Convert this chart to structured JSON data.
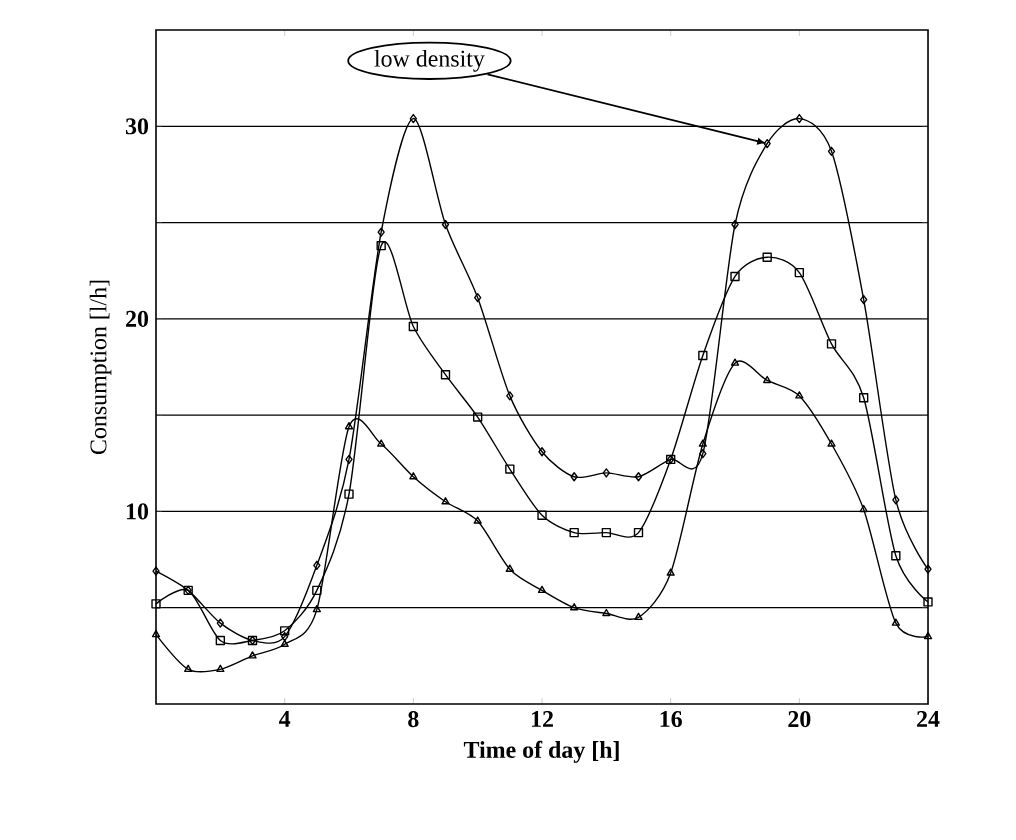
{
  "chart_data": {
    "type": "line",
    "xlabel": "Time of day [h]",
    "ylabel": "Consumption [l/h]",
    "x": [
      0,
      1,
      2,
      3,
      4,
      5,
      6,
      7,
      8,
      9,
      10,
      11,
      12,
      13,
      14,
      15,
      16,
      17,
      18,
      19,
      20,
      21,
      22,
      23,
      24
    ],
    "series": [
      {
        "color": "#000000",
        "marker": "diamond",
        "values": [
          6.9,
          5.9,
          4.2,
          3.3,
          3.5,
          7.2,
          12.7,
          24.5,
          30.4,
          24.9,
          21.1,
          16.0,
          13.1,
          11.8,
          12.0,
          11.8,
          12.7,
          13.0,
          24.9,
          29.1,
          30.4,
          28.7,
          21.0,
          10.6,
          7.0
        ]
      },
      {
        "color": "#000000",
        "marker": "square",
        "values": [
          5.2,
          5.9,
          3.3,
          3.3,
          3.8,
          5.9,
          10.9,
          23.8,
          19.6,
          17.1,
          14.9,
          12.2,
          9.8,
          8.9,
          8.9,
          8.9,
          12.7,
          18.1,
          22.2,
          23.2,
          22.4,
          18.7,
          15.9,
          7.7,
          5.3
        ]
      },
      {
        "color": "#000000",
        "marker": "triangle",
        "values": [
          3.6,
          1.8,
          1.8,
          2.5,
          3.1,
          4.9,
          14.4,
          13.5,
          11.8,
          10.5,
          9.5,
          7.0,
          5.9,
          5.0,
          4.7,
          4.5,
          6.8,
          13.5,
          17.7,
          16.8,
          16.0,
          13.5,
          10.1,
          4.2,
          3.5
        ]
      }
    ],
    "xlim": [
      0,
      24
    ],
    "xticks": [
      4,
      8,
      12,
      16,
      20,
      24
    ],
    "ylim": [
      0,
      35
    ],
    "yticks": [
      {
        "value": 5,
        "label": null
      },
      10,
      {
        "value": 15,
        "label": null
      },
      20,
      {
        "value": 25,
        "label": null
      },
      30
    ],
    "grid": "y",
    "annotations": [
      {
        "text": "low density",
        "x": 19,
        "y": 29.1
      }
    ]
  }
}
